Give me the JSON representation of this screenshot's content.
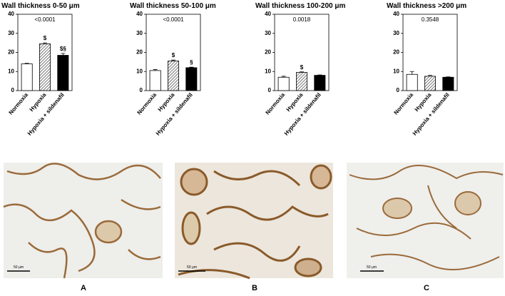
{
  "chart_data": [
    {
      "type": "bar",
      "title": "Wall thickness 0-50 μm",
      "annotation": "<0.0001",
      "categories": [
        "Normoxia",
        "Hypoxia",
        "Hypoxia + sildenafil"
      ],
      "values": [
        14,
        24.5,
        18.5
      ],
      "errors": [
        0.3,
        0.5,
        1
      ],
      "significance": [
        null,
        "$",
        "$§"
      ],
      "bar_styles": [
        "white",
        "hatched",
        "black"
      ],
      "ylim": [
        0,
        40
      ],
      "yticks": [
        0,
        10,
        20,
        30,
        40
      ]
    },
    {
      "type": "bar",
      "title": "Wall thickness 50-100 μm",
      "annotation": "<0.0001",
      "categories": [
        "Normoxia",
        "Hypoxia",
        "Hypoxia + sildenafil"
      ],
      "values": [
        10.5,
        15.5,
        12
      ],
      "errors": [
        0.5,
        0.5,
        0.3
      ],
      "significance": [
        null,
        "$",
        "§"
      ],
      "bar_styles": [
        "white",
        "hatched",
        "black"
      ],
      "ylim": [
        0,
        40
      ],
      "yticks": [
        0,
        10,
        20,
        30,
        40
      ]
    },
    {
      "type": "bar",
      "title": "Wall thickness 100-200 μm",
      "annotation": "0.0018",
      "categories": [
        "Normoxia",
        "Hypoxia",
        "Hypoxia + sildenafil"
      ],
      "values": [
        7,
        9.5,
        8
      ],
      "errors": [
        0.5,
        0.3,
        0.2
      ],
      "significance": [
        null,
        "$",
        null
      ],
      "bar_styles": [
        "white",
        "hatched",
        "black"
      ],
      "ylim": [
        0,
        40
      ],
      "yticks": [
        0,
        10,
        20,
        30,
        40
      ]
    },
    {
      "type": "bar",
      "title": "Wall thickness >200 μm",
      "annotation": "0.3548",
      "categories": [
        "Normoxia",
        "Hypoxia",
        "Hypoxia + sildenafil"
      ],
      "values": [
        8.5,
        7.5,
        7
      ],
      "errors": [
        1.5,
        0.5,
        0.2
      ],
      "significance": [
        null,
        null,
        null
      ],
      "bar_styles": [
        "white",
        "hatched",
        "black"
      ],
      "ylim": [
        0,
        40
      ],
      "yticks": [
        0,
        10,
        20,
        30,
        40
      ]
    }
  ],
  "panels": [
    {
      "label": "A",
      "scale_bar": "50 μm"
    },
    {
      "label": "B",
      "scale_bar": "50 μm"
    },
    {
      "label": "C",
      "scale_bar": "50 μm"
    }
  ]
}
